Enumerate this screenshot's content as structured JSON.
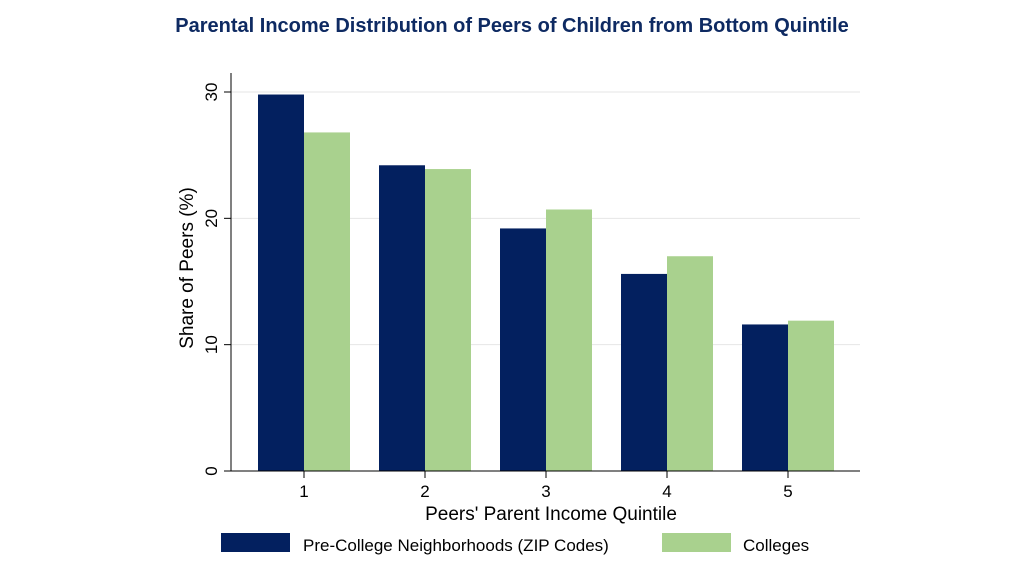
{
  "chart_data": {
    "type": "bar",
    "title": "Parental Income Distribution of Peers of Children from Bottom Quintile",
    "xlabel": "Peers' Parent Income Quintile",
    "ylabel": "Share of Peers (%)",
    "categories": [
      "1",
      "2",
      "3",
      "4",
      "5"
    ],
    "ylim": [
      0,
      30
    ],
    "yticks": [
      "0",
      "10",
      "20",
      "30"
    ],
    "grid": true,
    "legend_position": "bottom",
    "series": [
      {
        "name": "Pre-College Neighborhoods (ZIP Codes)",
        "color": "#03205f",
        "values": [
          29.8,
          24.2,
          19.2,
          15.6,
          11.6
        ]
      },
      {
        "name": "Colleges",
        "color": "#a9d18e",
        "values": [
          26.8,
          23.9,
          20.7,
          17.0,
          11.9
        ]
      }
    ]
  }
}
